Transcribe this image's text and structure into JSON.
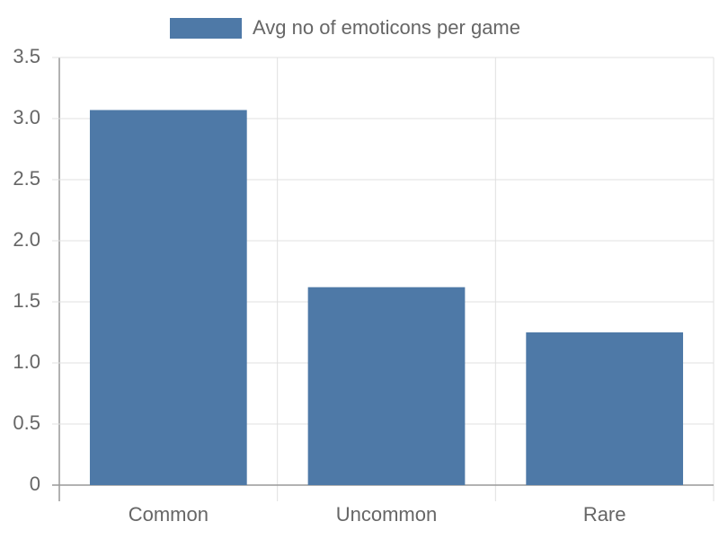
{
  "chart_data": {
    "type": "bar",
    "categories": [
      "Common",
      "Uncommon",
      "Rare"
    ],
    "series": [
      {
        "name": "Avg no of emoticons per game",
        "color": "#4e79a7",
        "values": [
          3.07,
          1.62,
          1.25
        ]
      }
    ],
    "ylim": [
      0,
      3.5
    ],
    "yticks": [
      0,
      0.5,
      {
        "value": 1,
        "label": "1.0"
      },
      1.5,
      {
        "value": 2,
        "label": "2.0"
      },
      2.5,
      {
        "value": 3,
        "label": "3.0"
      },
      3.5
    ],
    "grid": true,
    "legend": "top"
  }
}
